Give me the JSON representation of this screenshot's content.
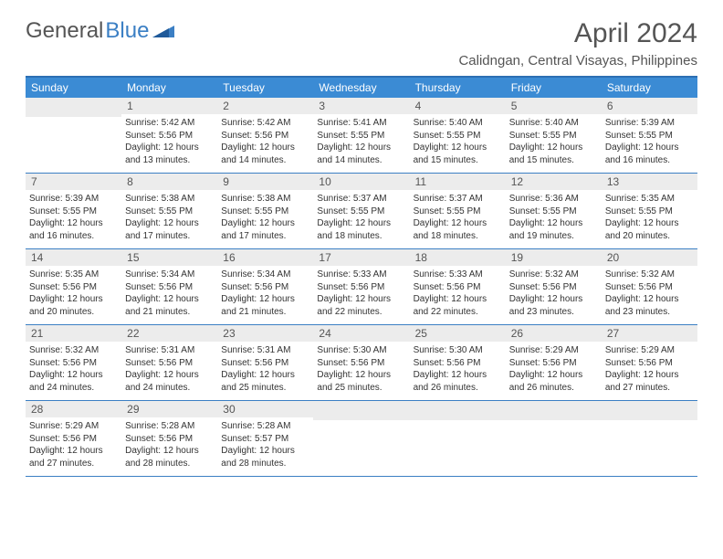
{
  "logo": {
    "text_gray": "General",
    "text_blue": "Blue"
  },
  "title": "April 2024",
  "subtitle": "Calidngan, Central Visayas, Philippines",
  "colors": {
    "header_bg": "#3b8bd4",
    "header_border": "#2d6fb3",
    "daynum_bg": "#ececec",
    "week_border": "#3b7fc4",
    "logo_blue": "#3b7fc4",
    "text": "#555"
  },
  "day_headers": [
    "Sunday",
    "Monday",
    "Tuesday",
    "Wednesday",
    "Thursday",
    "Friday",
    "Saturday"
  ],
  "weeks": [
    [
      {
        "n": "",
        "sr": "",
        "ss": "",
        "dl": ""
      },
      {
        "n": "1",
        "sr": "Sunrise: 5:42 AM",
        "ss": "Sunset: 5:56 PM",
        "dl": "Daylight: 12 hours and 13 minutes."
      },
      {
        "n": "2",
        "sr": "Sunrise: 5:42 AM",
        "ss": "Sunset: 5:56 PM",
        "dl": "Daylight: 12 hours and 14 minutes."
      },
      {
        "n": "3",
        "sr": "Sunrise: 5:41 AM",
        "ss": "Sunset: 5:55 PM",
        "dl": "Daylight: 12 hours and 14 minutes."
      },
      {
        "n": "4",
        "sr": "Sunrise: 5:40 AM",
        "ss": "Sunset: 5:55 PM",
        "dl": "Daylight: 12 hours and 15 minutes."
      },
      {
        "n": "5",
        "sr": "Sunrise: 5:40 AM",
        "ss": "Sunset: 5:55 PM",
        "dl": "Daylight: 12 hours and 15 minutes."
      },
      {
        "n": "6",
        "sr": "Sunrise: 5:39 AM",
        "ss": "Sunset: 5:55 PM",
        "dl": "Daylight: 12 hours and 16 minutes."
      }
    ],
    [
      {
        "n": "7",
        "sr": "Sunrise: 5:39 AM",
        "ss": "Sunset: 5:55 PM",
        "dl": "Daylight: 12 hours and 16 minutes."
      },
      {
        "n": "8",
        "sr": "Sunrise: 5:38 AM",
        "ss": "Sunset: 5:55 PM",
        "dl": "Daylight: 12 hours and 17 minutes."
      },
      {
        "n": "9",
        "sr": "Sunrise: 5:38 AM",
        "ss": "Sunset: 5:55 PM",
        "dl": "Daylight: 12 hours and 17 minutes."
      },
      {
        "n": "10",
        "sr": "Sunrise: 5:37 AM",
        "ss": "Sunset: 5:55 PM",
        "dl": "Daylight: 12 hours and 18 minutes."
      },
      {
        "n": "11",
        "sr": "Sunrise: 5:37 AM",
        "ss": "Sunset: 5:55 PM",
        "dl": "Daylight: 12 hours and 18 minutes."
      },
      {
        "n": "12",
        "sr": "Sunrise: 5:36 AM",
        "ss": "Sunset: 5:55 PM",
        "dl": "Daylight: 12 hours and 19 minutes."
      },
      {
        "n": "13",
        "sr": "Sunrise: 5:35 AM",
        "ss": "Sunset: 5:55 PM",
        "dl": "Daylight: 12 hours and 20 minutes."
      }
    ],
    [
      {
        "n": "14",
        "sr": "Sunrise: 5:35 AM",
        "ss": "Sunset: 5:56 PM",
        "dl": "Daylight: 12 hours and 20 minutes."
      },
      {
        "n": "15",
        "sr": "Sunrise: 5:34 AM",
        "ss": "Sunset: 5:56 PM",
        "dl": "Daylight: 12 hours and 21 minutes."
      },
      {
        "n": "16",
        "sr": "Sunrise: 5:34 AM",
        "ss": "Sunset: 5:56 PM",
        "dl": "Daylight: 12 hours and 21 minutes."
      },
      {
        "n": "17",
        "sr": "Sunrise: 5:33 AM",
        "ss": "Sunset: 5:56 PM",
        "dl": "Daylight: 12 hours and 22 minutes."
      },
      {
        "n": "18",
        "sr": "Sunrise: 5:33 AM",
        "ss": "Sunset: 5:56 PM",
        "dl": "Daylight: 12 hours and 22 minutes."
      },
      {
        "n": "19",
        "sr": "Sunrise: 5:32 AM",
        "ss": "Sunset: 5:56 PM",
        "dl": "Daylight: 12 hours and 23 minutes."
      },
      {
        "n": "20",
        "sr": "Sunrise: 5:32 AM",
        "ss": "Sunset: 5:56 PM",
        "dl": "Daylight: 12 hours and 23 minutes."
      }
    ],
    [
      {
        "n": "21",
        "sr": "Sunrise: 5:32 AM",
        "ss": "Sunset: 5:56 PM",
        "dl": "Daylight: 12 hours and 24 minutes."
      },
      {
        "n": "22",
        "sr": "Sunrise: 5:31 AM",
        "ss": "Sunset: 5:56 PM",
        "dl": "Daylight: 12 hours and 24 minutes."
      },
      {
        "n": "23",
        "sr": "Sunrise: 5:31 AM",
        "ss": "Sunset: 5:56 PM",
        "dl": "Daylight: 12 hours and 25 minutes."
      },
      {
        "n": "24",
        "sr": "Sunrise: 5:30 AM",
        "ss": "Sunset: 5:56 PM",
        "dl": "Daylight: 12 hours and 25 minutes."
      },
      {
        "n": "25",
        "sr": "Sunrise: 5:30 AM",
        "ss": "Sunset: 5:56 PM",
        "dl": "Daylight: 12 hours and 26 minutes."
      },
      {
        "n": "26",
        "sr": "Sunrise: 5:29 AM",
        "ss": "Sunset: 5:56 PM",
        "dl": "Daylight: 12 hours and 26 minutes."
      },
      {
        "n": "27",
        "sr": "Sunrise: 5:29 AM",
        "ss": "Sunset: 5:56 PM",
        "dl": "Daylight: 12 hours and 27 minutes."
      }
    ],
    [
      {
        "n": "28",
        "sr": "Sunrise: 5:29 AM",
        "ss": "Sunset: 5:56 PM",
        "dl": "Daylight: 12 hours and 27 minutes."
      },
      {
        "n": "29",
        "sr": "Sunrise: 5:28 AM",
        "ss": "Sunset: 5:56 PM",
        "dl": "Daylight: 12 hours and 28 minutes."
      },
      {
        "n": "30",
        "sr": "Sunrise: 5:28 AM",
        "ss": "Sunset: 5:57 PM",
        "dl": "Daylight: 12 hours and 28 minutes."
      },
      {
        "n": "",
        "sr": "",
        "ss": "",
        "dl": ""
      },
      {
        "n": "",
        "sr": "",
        "ss": "",
        "dl": ""
      },
      {
        "n": "",
        "sr": "",
        "ss": "",
        "dl": ""
      },
      {
        "n": "",
        "sr": "",
        "ss": "",
        "dl": ""
      }
    ]
  ]
}
